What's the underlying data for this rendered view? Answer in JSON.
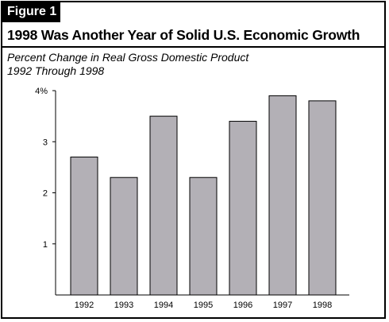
{
  "figure_label": "Figure 1",
  "title": "1998 Was Another Year of Solid U.S. Economic Growth",
  "subtitle_line1": "Percent Change in Real Gross Domestic Product",
  "subtitle_line2": "1992 Through 1998",
  "colors": {
    "bar": "#b3b0b6",
    "bar_stroke": "#000000",
    "axis": "#000000"
  },
  "chart_data": {
    "type": "bar",
    "categories": [
      "1992",
      "1993",
      "1994",
      "1995",
      "1996",
      "1997",
      "1998"
    ],
    "values": [
      2.7,
      2.3,
      3.5,
      2.3,
      3.4,
      3.9,
      3.8
    ],
    "title": "",
    "xlabel": "",
    "ylabel": "",
    "ylim": [
      0,
      4
    ],
    "yticks": [
      1,
      2,
      3,
      4
    ],
    "ytick_labels": [
      "1",
      "2",
      "3",
      "4%"
    ],
    "grid": false
  }
}
